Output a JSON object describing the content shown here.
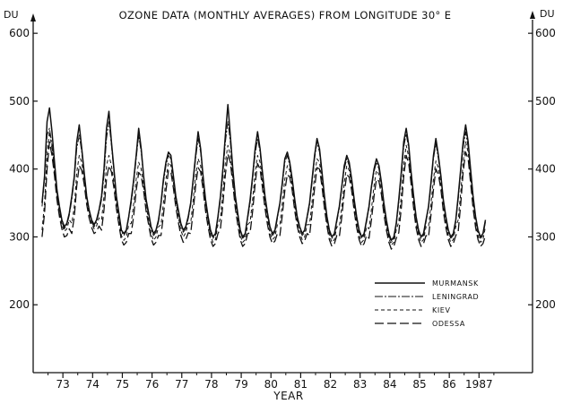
{
  "chart_data": {
    "type": "line",
    "title": "OZONE DATA (MONTHLY AVERAGES) FROM LONGITUDE 30° E",
    "xlabel": "YEAR",
    "ylabel_left": "DU",
    "ylabel_right": "DU",
    "ylim": [
      100,
      620
    ],
    "y_ticks": [
      "200",
      "300",
      "400",
      "500",
      "600"
    ],
    "y_tick_values": [
      200,
      300,
      400,
      500,
      600
    ],
    "right_y_ticks": [
      "200",
      "300",
      "400",
      "500",
      "600"
    ],
    "xlim": [
      1972.2,
      1989.0
    ],
    "x_ticks": [
      "73",
      "74",
      "75",
      "76",
      "77",
      "78",
      "79",
      "80",
      "81",
      "82",
      "83",
      "84",
      "85",
      "86",
      "1987"
    ],
    "x_tick_values": [
      1973.2,
      1974.2,
      1975.2,
      1976.2,
      1977.2,
      1978.2,
      1979.2,
      1980.2,
      1981.2,
      1982.2,
      1983.2,
      1984.2,
      1985.2,
      1986.2,
      1987.2
    ],
    "grid": false,
    "legend_position": "bottom-right",
    "x_start_year": 1972.5,
    "series": [
      {
        "name": "MURMANSK",
        "dash": "",
        "values": [
          [
            350,
            390,
            470,
            490,
            455,
            410,
            370,
            345,
            325,
            315,
            320,
            335
          ],
          [
            360,
            390,
            440,
            465,
            430,
            395,
            360,
            340,
            325,
            318,
            325,
            340
          ],
          [
            360,
            400,
            460,
            485,
            440,
            400,
            360,
            335,
            310,
            305,
            310,
            330
          ],
          [
            355,
            385,
            420,
            460,
            430,
            390,
            355,
            335,
            315,
            305,
            310,
            325
          ],
          [
            350,
            385,
            410,
            425,
            420,
            390,
            360,
            340,
            320,
            310,
            315,
            330
          ],
          [
            350,
            385,
            420,
            455,
            430,
            390,
            355,
            330,
            310,
            300,
            305,
            330
          ],
          [
            360,
            400,
            450,
            495,
            450,
            400,
            360,
            335,
            310,
            300,
            305,
            330
          ],
          [
            355,
            390,
            430,
            455,
            430,
            395,
            360,
            335,
            315,
            305,
            310,
            330
          ],
          [
            350,
            380,
            415,
            425,
            410,
            385,
            355,
            330,
            315,
            305,
            310,
            330
          ],
          [
            350,
            385,
            420,
            445,
            430,
            395,
            360,
            330,
            310,
            300,
            305,
            325
          ],
          [
            345,
            375,
            405,
            420,
            410,
            385,
            355,
            330,
            310,
            300,
            305,
            325
          ],
          [
            345,
            375,
            400,
            415,
            405,
            380,
            350,
            325,
            305,
            295,
            300,
            320
          ],
          [
            355,
            395,
            440,
            460,
            435,
            395,
            360,
            330,
            310,
            300,
            305,
            325
          ],
          [
            345,
            380,
            420,
            445,
            420,
            390,
            355,
            330,
            310,
            300,
            305,
            325
          ],
          [
            360,
            400,
            440,
            465,
            440,
            400,
            360,
            330,
            310,
            300,
            305,
            325
          ]
        ]
      },
      {
        "name": "LENINGRAD",
        "dash": "9 2 2 2",
        "values": [
          [
            345,
            385,
            450,
            460,
            435,
            400,
            365,
            340,
            322,
            312,
            318,
            332
          ],
          [
            355,
            385,
            430,
            450,
            425,
            390,
            358,
            338,
            322,
            315,
            322,
            337
          ],
          [
            355,
            390,
            445,
            470,
            435,
            395,
            358,
            332,
            308,
            302,
            308,
            328
          ],
          [
            350,
            380,
            415,
            450,
            425,
            387,
            352,
            332,
            312,
            302,
            307,
            322
          ],
          [
            347,
            380,
            405,
            420,
            415,
            387,
            357,
            337,
            317,
            307,
            312,
            327
          ],
          [
            347,
            380,
            415,
            445,
            425,
            387,
            352,
            327,
            307,
            298,
            302,
            327
          ],
          [
            355,
            392,
            440,
            470,
            440,
            395,
            357,
            332,
            307,
            298,
            302,
            327
          ],
          [
            350,
            385,
            422,
            445,
            425,
            390,
            357,
            332,
            312,
            302,
            307,
            327
          ],
          [
            347,
            375,
            410,
            420,
            405,
            382,
            352,
            327,
            312,
            302,
            307,
            327
          ],
          [
            347,
            380,
            415,
            440,
            425,
            390,
            357,
            327,
            307,
            298,
            302,
            322
          ],
          [
            342,
            372,
            400,
            415,
            405,
            382,
            352,
            327,
            307,
            298,
            302,
            322
          ],
          [
            342,
            372,
            396,
            410,
            400,
            377,
            347,
            322,
            302,
            292,
            297,
            317
          ],
          [
            350,
            388,
            432,
            452,
            430,
            390,
            357,
            327,
            307,
            298,
            302,
            322
          ],
          [
            342,
            375,
            415,
            438,
            415,
            387,
            352,
            327,
            307,
            298,
            302,
            322
          ],
          [
            355,
            395,
            432,
            455,
            432,
            395,
            357,
            327,
            307,
            298,
            302,
            322
          ]
        ]
      },
      {
        "name": "KIEV",
        "dash": "4 3",
        "values": [
          [
            310,
            350,
            420,
            455,
            430,
            395,
            360,
            335,
            318,
            308,
            312,
            325
          ],
          [
            320,
            345,
            395,
            420,
            410,
            385,
            355,
            335,
            320,
            312,
            316,
            328
          ],
          [
            325,
            360,
            405,
            420,
            405,
            380,
            350,
            325,
            302,
            295,
            300,
            318
          ],
          [
            320,
            350,
            385,
            410,
            400,
            375,
            345,
            325,
            305,
            295,
            300,
            315
          ],
          [
            318,
            350,
            385,
            410,
            405,
            380,
            352,
            330,
            310,
            300,
            306,
            320
          ],
          [
            320,
            355,
            390,
            415,
            405,
            378,
            345,
            322,
            302,
            292,
            296,
            318
          ],
          [
            328,
            365,
            410,
            435,
            420,
            385,
            350,
            325,
            302,
            292,
            296,
            318
          ],
          [
            322,
            355,
            395,
            420,
            410,
            380,
            350,
            326,
            306,
            296,
            300,
            318
          ],
          [
            318,
            350,
            385,
            405,
            398,
            375,
            345,
            322,
            306,
            296,
            300,
            318
          ],
          [
            318,
            352,
            390,
            415,
            410,
            382,
            350,
            322,
            302,
            292,
            296,
            315
          ],
          [
            315,
            345,
            380,
            405,
            398,
            375,
            345,
            320,
            302,
            292,
            296,
            315
          ],
          [
            312,
            342,
            375,
            398,
            392,
            370,
            340,
            316,
            298,
            288,
            292,
            310
          ],
          [
            322,
            360,
            405,
            435,
            418,
            385,
            350,
            320,
            302,
            292,
            296,
            315
          ],
          [
            315,
            348,
            385,
            412,
            402,
            378,
            346,
            320,
            302,
            292,
            296,
            315
          ],
          [
            325,
            365,
            410,
            440,
            425,
            388,
            350,
            320,
            302,
            292,
            296,
            315
          ]
        ]
      },
      {
        "name": "ODESSA",
        "dash": "10 4",
        "values": [
          [
            300,
            335,
            400,
            440,
            420,
            390,
            355,
            330,
            312,
            300,
            302,
            312
          ],
          [
            305,
            330,
            375,
            405,
            398,
            378,
            348,
            328,
            314,
            305,
            308,
            316
          ],
          [
            310,
            340,
            385,
            405,
            396,
            372,
            342,
            318,
            296,
            288,
            292,
            305
          ],
          [
            305,
            332,
            368,
            395,
            390,
            368,
            338,
            318,
            298,
            288,
            292,
            302
          ],
          [
            302,
            332,
            368,
            398,
            396,
            372,
            344,
            322,
            302,
            292,
            296,
            306
          ],
          [
            305,
            338,
            375,
            402,
            396,
            370,
            338,
            315,
            296,
            286,
            290,
            305
          ],
          [
            312,
            348,
            392,
            422,
            410,
            378,
            342,
            318,
            296,
            286,
            290,
            305
          ],
          [
            306,
            338,
            378,
            408,
            400,
            372,
            342,
            318,
            300,
            290,
            294,
            305
          ],
          [
            302,
            332,
            368,
            392,
            388,
            368,
            338,
            316,
            300,
            290,
            294,
            305
          ],
          [
            302,
            335,
            372,
            402,
            400,
            374,
            342,
            316,
            296,
            286,
            290,
            302
          ],
          [
            300,
            330,
            365,
            392,
            388,
            368,
            338,
            314,
            296,
            286,
            290,
            302
          ],
          [
            298,
            326,
            360,
            385,
            382,
            362,
            334,
            310,
            292,
            282,
            286,
            298
          ],
          [
            306,
            342,
            388,
            420,
            408,
            378,
            342,
            314,
            296,
            286,
            290,
            302
          ],
          [
            300,
            332,
            370,
            400,
            392,
            370,
            338,
            314,
            296,
            286,
            290,
            302
          ],
          [
            308,
            348,
            395,
            425,
            415,
            380,
            342,
            314,
            296,
            286,
            290,
            302
          ]
        ]
      }
    ]
  }
}
